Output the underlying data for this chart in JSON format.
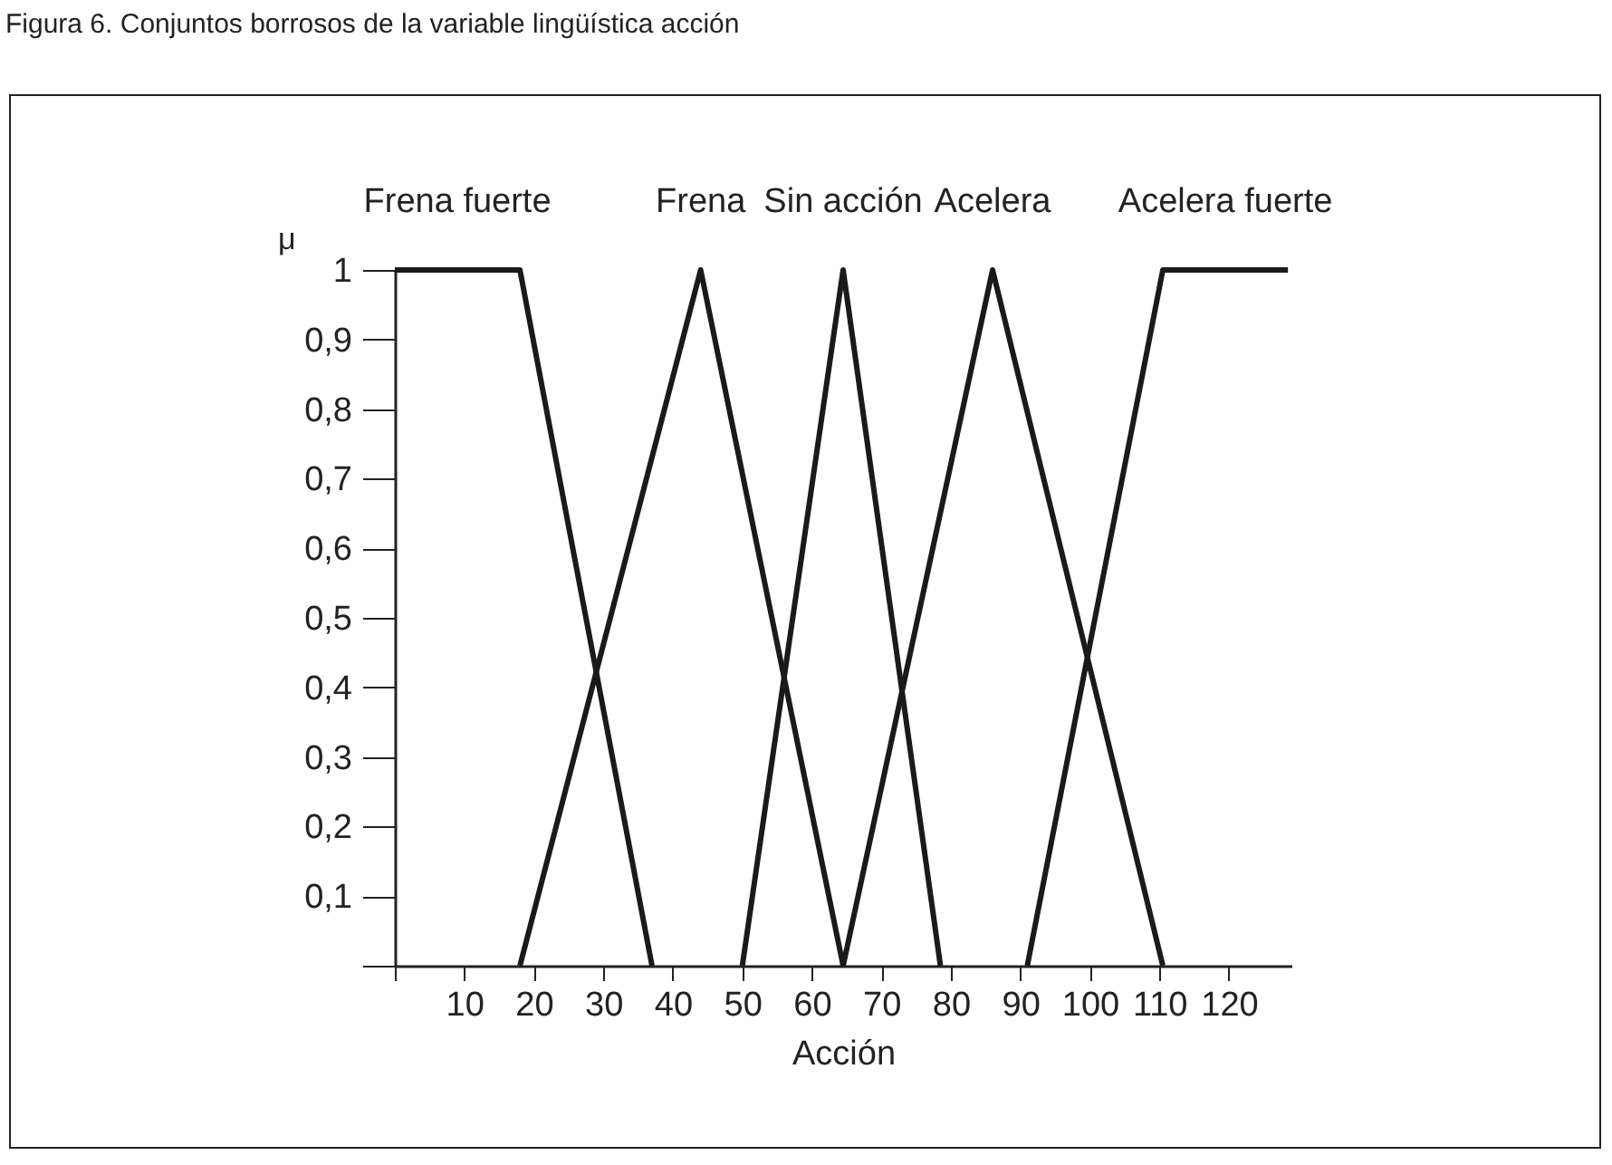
{
  "chart_data": {
    "type": "line",
    "title": "Figura 6. Conjuntos borrosos de la variable lingüística acción",
    "xlabel": "Acción",
    "ylabel": "μ",
    "series": [
      {
        "name": "Frena fuerte",
        "color": "#1a1a1a",
        "x": [
          0,
          18,
          37
        ],
        "values": [
          1,
          1,
          0
        ]
      },
      {
        "name": "Frena",
        "color": "#1a1a1a",
        "x": [
          18,
          44,
          64.5
        ],
        "values": [
          0,
          1,
          0
        ]
      },
      {
        "name": "Sin acción",
        "color": "#1a1a1a",
        "x": [
          50,
          64.5,
          78.5
        ],
        "values": [
          0,
          1,
          0
        ]
      },
      {
        "name": "Acelera",
        "color": "#1a1a1a",
        "x": [
          64.5,
          86,
          110.5
        ],
        "values": [
          0,
          1,
          0
        ]
      },
      {
        "name": "Acelera fuerte",
        "color": "#1a1a1a",
        "x": [
          91,
          110.5,
          128.5
        ],
        "values": [
          0,
          1,
          1
        ]
      }
    ],
    "xlim": [
      0,
      129
    ],
    "xticks": [
      {
        "value": 0,
        "label": null
      },
      10,
      20,
      30,
      40,
      50,
      60,
      70,
      80,
      90,
      100,
      110,
      120
    ],
    "ylim": [
      0,
      1
    ],
    "yticks": [
      {
        "value": 0,
        "label": null
      },
      {
        "value": 0.1,
        "label": "0,1"
      },
      {
        "value": 0.2,
        "label": "0,2"
      },
      {
        "value": 0.3,
        "label": "0,3"
      },
      {
        "value": 0.4,
        "label": "0,4"
      },
      {
        "value": 0.5,
        "label": "0,5"
      },
      {
        "value": 0.6,
        "label": "0,6"
      },
      {
        "value": 0.7,
        "label": "0,7"
      },
      {
        "value": 0.8,
        "label": "0,8"
      },
      {
        "value": 0.9,
        "label": "0,9"
      },
      1
    ],
    "grid": false,
    "legend": false,
    "marker": "none",
    "line_style": "solid"
  }
}
